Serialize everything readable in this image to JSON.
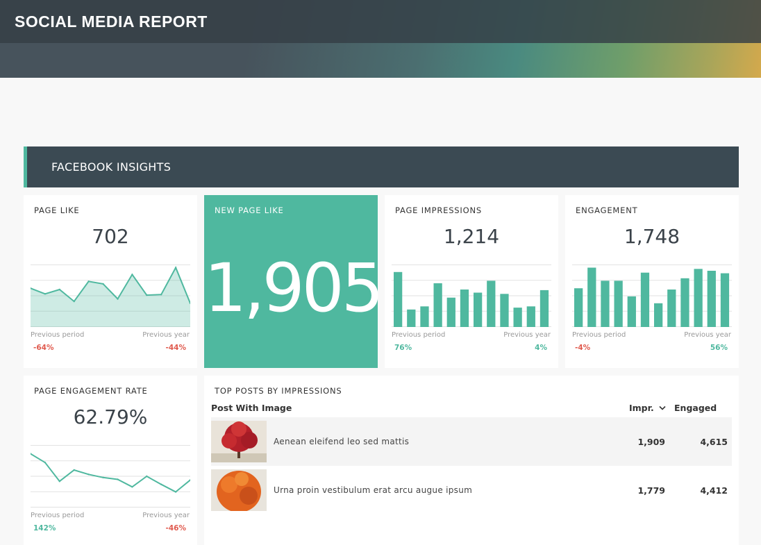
{
  "header": {
    "title": "SOCIAL MEDIA REPORT"
  },
  "section": {
    "title": "FACEBOOK INSIGHTS"
  },
  "cards": {
    "page_like": {
      "title": "PAGE LIKE",
      "value": "702",
      "prev_period_label": "Previous period",
      "prev_period_value": "-64%",
      "prev_year_label": "Previous year",
      "prev_year_value": "-44%",
      "trend": [
        62,
        53,
        60,
        41,
        73,
        69,
        45,
        84,
        51,
        52,
        95,
        38
      ]
    },
    "new_page_like": {
      "title": "NEW PAGE LIKE",
      "value": "1,905"
    },
    "page_impressions": {
      "title": "PAGE IMPRESSIONS",
      "value": "1,214",
      "prev_period_label": "Previous period",
      "prev_period_value": "76%",
      "prev_year_label": "Previous year",
      "prev_year_value": "4%",
      "bars": [
        88,
        28,
        33,
        70,
        47,
        60,
        55,
        74,
        53,
        31,
        33,
        59
      ]
    },
    "engagement": {
      "title": "ENGAGEMENT",
      "value": "1,748",
      "prev_period_label": "Previous period",
      "prev_period_value": "-4%",
      "prev_year_label": "Previous year",
      "prev_year_value": "56%",
      "bars": [
        62,
        95,
        74,
        74,
        49,
        87,
        38,
        60,
        78,
        93,
        90,
        86
      ]
    },
    "engagement_rate": {
      "title": "PAGE ENGAGEMENT RATE",
      "value": "62.79%",
      "prev_period_label": "Previous period",
      "prev_period_value": "142%",
      "prev_year_label": "Previous year",
      "prev_year_value": "-46%",
      "trend": [
        86,
        72,
        42,
        60,
        53,
        48,
        45,
        33,
        50,
        37,
        25,
        44
      ]
    }
  },
  "top_posts": {
    "title": "TOP POSTS BY IMPRESSIONS",
    "col_post": "Post With Image",
    "col_impr": "Impr.",
    "col_engaged": "Engaged",
    "rows": [
      {
        "text": "Aenean eleifend leo sed mattis",
        "impr": "1,909",
        "engaged": "4,615",
        "image": "red-tree-icon"
      },
      {
        "text": "Urna proin vestibulum erat arcu augue ipsum",
        "impr": "1,779",
        "engaged": "4,412",
        "image": "orange-tree-icon"
      }
    ]
  },
  "colors": {
    "accent": "#4fb89f",
    "dark": "#3b4a53",
    "negative": "#e05a4e"
  }
}
